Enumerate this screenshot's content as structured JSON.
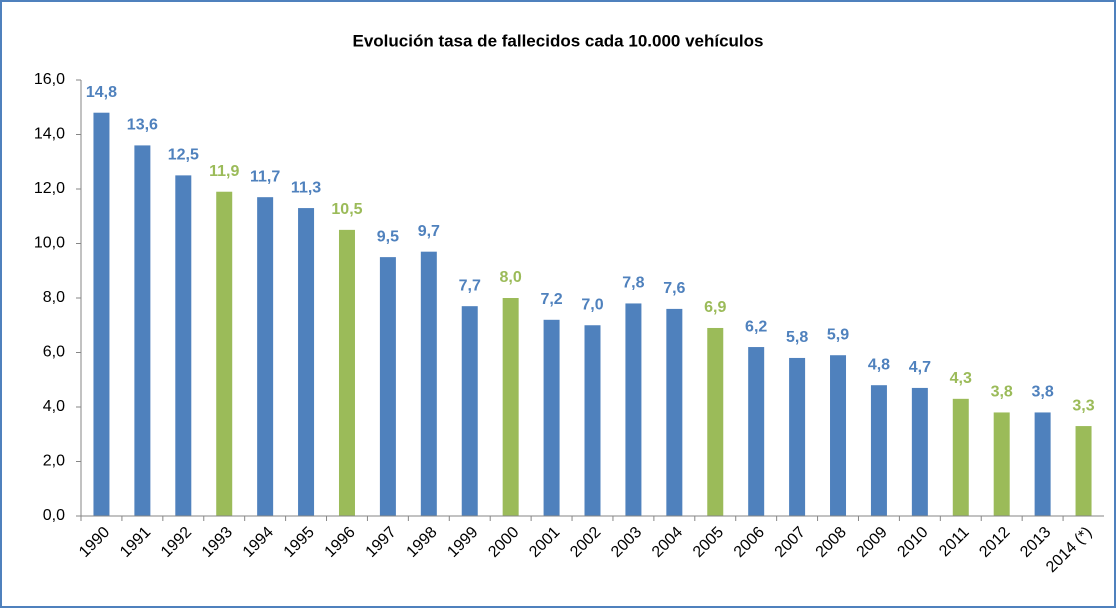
{
  "chart_data": {
    "type": "bar",
    "title": "Evolución tasa de fallecidos cada 10.000 vehículos",
    "categories": [
      "1990",
      "1991",
      "1992",
      "1993",
      "1994",
      "1995",
      "1996",
      "1997",
      "1998",
      "1999",
      "2000",
      "2001",
      "2002",
      "2003",
      "2004",
      "2005",
      "2006",
      "2007",
      "2008",
      "2009",
      "2010",
      "2011",
      "2012",
      "2013",
      "2014 (*)"
    ],
    "values": [
      14.8,
      13.6,
      12.5,
      11.9,
      11.7,
      11.3,
      10.5,
      9.5,
      9.7,
      7.7,
      8.0,
      7.2,
      7.0,
      7.8,
      7.6,
      6.9,
      6.2,
      5.8,
      5.9,
      4.8,
      4.7,
      4.3,
      3.8,
      3.8,
      3.3
    ],
    "value_labels": [
      "14,8",
      "13,6",
      "12,5",
      "11,9",
      "11,7",
      "11,3",
      "10,5",
      "9,5",
      "9,7",
      "7,7",
      "8,0",
      "7,2",
      "7,0",
      "7,8",
      "7,6",
      "6,9",
      "6,2",
      "5,8",
      "5,9",
      "4,8",
      "4,7",
      "4,3",
      "3,8",
      "3,8",
      "3,3"
    ],
    "colors": [
      "#4f81bd",
      "#4f81bd",
      "#4f81bd",
      "#9bbb59",
      "#4f81bd",
      "#4f81bd",
      "#9bbb59",
      "#4f81bd",
      "#4f81bd",
      "#4f81bd",
      "#9bbb59",
      "#4f81bd",
      "#4f81bd",
      "#4f81bd",
      "#4f81bd",
      "#9bbb59",
      "#4f81bd",
      "#4f81bd",
      "#4f81bd",
      "#4f81bd",
      "#4f81bd",
      "#9bbb59",
      "#9bbb59",
      "#4f81bd",
      "#9bbb59"
    ],
    "ylim": [
      0,
      16
    ],
    "yticks": [
      {
        "value": 0,
        "label": "0,0"
      },
      {
        "value": 2,
        "label": "2,0"
      },
      {
        "value": 4,
        "label": "4,0"
      },
      {
        "value": 6,
        "label": "6,0"
      },
      {
        "value": 8,
        "label": "8,0"
      },
      {
        "value": 10,
        "label": "10,0"
      },
      {
        "value": 12,
        "label": "12,0"
      },
      {
        "value": 14,
        "label": "14,0"
      },
      {
        "value": 16,
        "label": "16,0"
      }
    ],
    "grid": false
  }
}
